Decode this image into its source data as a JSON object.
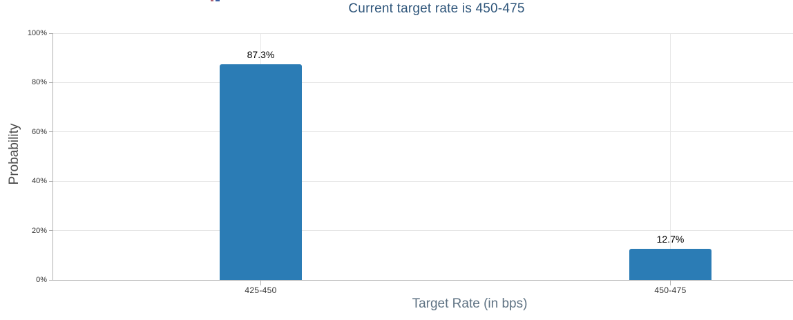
{
  "chart_data": {
    "type": "bar",
    "title": "Current target rate is 450-475",
    "xlabel": "Target Rate (in bps)",
    "ylabel": "Probability",
    "categories": [
      "425-450",
      "450-475"
    ],
    "values": [
      87.3,
      12.7
    ],
    "data_labels": [
      "87.3%",
      "12.7%"
    ],
    "ylim": [
      0,
      100
    ],
    "ytick_step": 20,
    "ytick_labels": [
      "0%",
      "20%",
      "40%",
      "60%",
      "80%",
      "100%"
    ],
    "grid": true,
    "legend": false,
    "bar_color": "#2b7cb5",
    "colors": {
      "title": "#2e557a",
      "y_axis_title": "#4d4d4d",
      "x_axis_title": "#5e7283",
      "axis_line": "#b0b0b0",
      "gridline": "#e6e6e6",
      "tick_label": "#333333",
      "data_label": "#000000"
    }
  },
  "artifacts": {
    "cropped_top_marks": [
      {
        "color": "#b06070",
        "x": 305,
        "w": 4
      },
      {
        "color": "#3c5fa5",
        "x": 312,
        "w": 6
      }
    ]
  }
}
